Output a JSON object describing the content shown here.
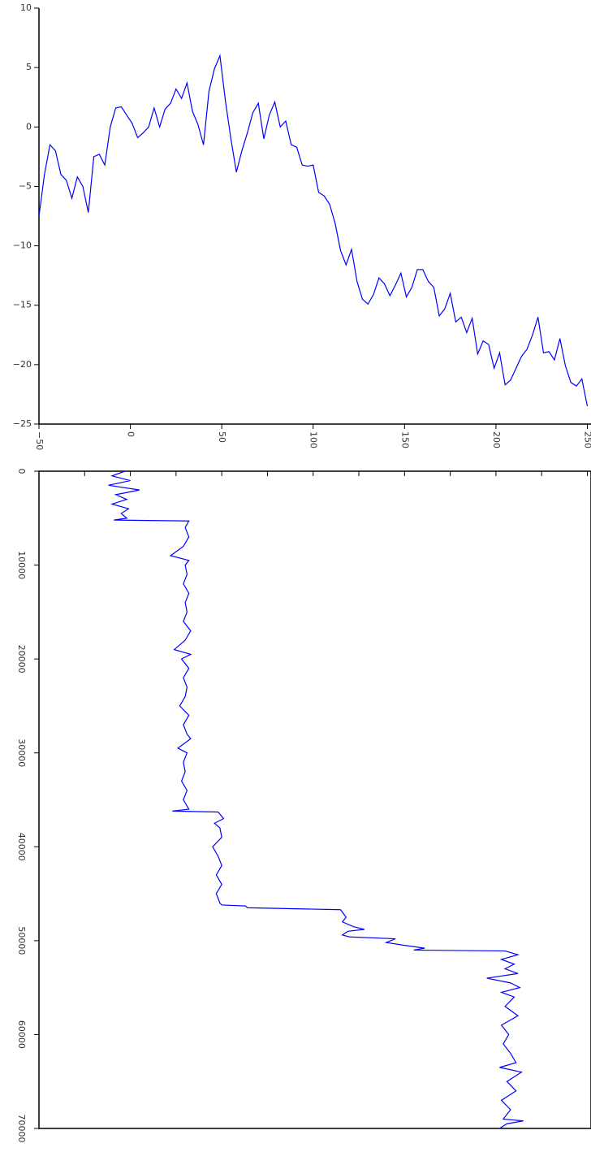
{
  "chart_data": [
    {
      "type": "line",
      "color": "#0000ff",
      "xlim": [
        -50,
        252
      ],
      "ylim": [
        -25,
        10
      ],
      "xticks": [
        {
          "value": -50,
          "label": "−50"
        },
        0,
        50,
        100,
        150,
        200,
        250
      ],
      "yticks": [
        {
          "value": -25,
          "label": "−25"
        },
        {
          "value": -20,
          "label": "−20"
        },
        {
          "value": -15,
          "label": "−15"
        },
        {
          "value": -10,
          "label": "−10"
        },
        {
          "value": -5,
          "label": "−5"
        },
        0,
        5,
        10
      ],
      "x": [
        -50,
        -47,
        -44,
        -41,
        -38,
        -35,
        -32,
        -29,
        -26,
        -23,
        -20,
        -17,
        -14,
        -11,
        -8,
        -5,
        -2,
        1,
        4,
        7,
        10,
        13,
        16,
        19,
        22,
        25,
        28,
        31,
        34,
        37,
        40,
        43,
        46,
        49,
        52,
        55,
        58,
        61,
        64,
        67,
        70,
        73,
        76,
        79,
        82,
        85,
        88,
        91,
        94,
        97,
        100,
        103,
        106,
        109,
        112,
        115,
        118,
        121,
        124,
        127,
        130,
        133,
        136,
        139,
        142,
        145,
        148,
        151,
        154,
        157,
        160,
        163,
        166,
        169,
        172,
        175,
        178,
        181,
        184,
        187,
        190,
        193,
        196,
        199,
        202,
        205,
        208,
        211,
        214,
        217,
        220,
        223,
        226,
        229,
        232,
        235,
        238,
        241,
        244,
        247,
        250
      ],
      "values": [
        -7.5,
        -4,
        -1.5,
        -2,
        -4,
        -4.5,
        -6,
        -4.2,
        -5,
        -7.2,
        -2.5,
        -2.3,
        -3.2,
        0,
        1.6,
        1.7,
        1,
        0.3,
        -0.9,
        -0.5,
        0,
        1.6,
        0,
        1.5,
        2,
        3.2,
        2.4,
        3.7,
        1.3,
        0.2,
        -1.5,
        3,
        4.9,
        6,
        2.2,
        -1,
        -3.8,
        -2,
        -0.5,
        1.2,
        2,
        -1,
        1,
        2.1,
        0,
        0.5,
        -1.5,
        -1.7,
        -3.2,
        -3.3,
        -3.2,
        -5.5,
        -5.8,
        -6.5,
        -8.1,
        -10.4,
        -11.6,
        -10.3,
        -13,
        -14.5,
        -14.9,
        -14.1,
        -12.7,
        -13.2,
        -14.2,
        -13.3,
        -12.3,
        -14.3,
        -13.5,
        -12,
        -12,
        -13,
        -13.5,
        -15.9,
        -15.3,
        -14,
        -16.4,
        -16,
        -17.3,
        -16.1,
        -19.1,
        -18,
        -18.3,
        -20.3,
        -19,
        -21.7,
        -21.3,
        -20.3,
        -19.3,
        -18.7,
        -17.5,
        -16,
        -19,
        -18.9,
        -19.6,
        -17.8,
        -20.1,
        -21.5,
        -21.8,
        -21.2,
        -23.5
      ]
    },
    {
      "type": "vertical-line",
      "color": "#0000ff",
      "xlim": [
        -50,
        252
      ],
      "ylim": [
        0,
        70000
      ],
      "y_inverted": true,
      "xticks": [
        -50,
        -25,
        0,
        25,
        50,
        75,
        100,
        125,
        150,
        175,
        200,
        225,
        250
      ],
      "yticks": [
        0,
        10000,
        20000,
        30000,
        40000,
        50000,
        60000,
        70000
      ],
      "x": [
        -3,
        -10,
        0,
        -12,
        5,
        -8,
        -2,
        -10,
        -1,
        -5,
        -2,
        -9,
        32,
        30,
        32,
        29,
        22,
        32,
        30,
        31,
        29,
        32,
        30,
        31,
        29,
        33,
        30,
        24,
        33,
        28,
        32,
        29,
        31,
        30,
        27,
        32,
        29,
        31,
        33,
        26,
        31,
        29,
        30,
        28,
        31,
        29,
        32,
        23,
        48,
        51,
        46,
        49,
        50,
        45,
        48,
        50,
        47,
        50,
        47,
        49,
        50,
        63,
        64,
        115,
        118,
        116,
        122,
        128,
        119,
        116,
        120,
        145,
        140,
        150,
        161,
        155,
        205,
        212,
        203,
        210,
        205,
        212,
        195,
        208,
        213,
        203,
        210,
        205,
        212,
        203,
        207,
        204,
        208,
        211,
        202,
        214,
        206,
        211,
        203,
        208,
        204,
        215,
        206,
        202
      ],
      "y": [
        0,
        500,
        1000,
        1500,
        2000,
        2500,
        3000,
        3500,
        4000,
        4500,
        5000,
        5200,
        5300,
        6000,
        7000,
        8000,
        9000,
        9500,
        10000,
        11000,
        12000,
        13000,
        14000,
        15000,
        16000,
        17000,
        18000,
        19000,
        19500,
        20000,
        21000,
        22000,
        23000,
        24000,
        25000,
        26000,
        27000,
        28000,
        28500,
        29500,
        30000,
        31000,
        32000,
        33000,
        34000,
        35000,
        36000,
        36200,
        36300,
        37000,
        37500,
        38000,
        39000,
        40000,
        41000,
        42000,
        43000,
        44000,
        45000,
        46000,
        46200,
        46300,
        46500,
        46700,
        47500,
        48000,
        48500,
        48800,
        49000,
        49400,
        49600,
        49800,
        50200,
        50500,
        50800,
        51000,
        51100,
        51500,
        52000,
        52500,
        53000,
        53500,
        54000,
        54500,
        55000,
        55500,
        56000,
        57000,
        58000,
        59000,
        60000,
        61000,
        62000,
        63000,
        63500,
        64000,
        65000,
        66000,
        67000,
        68000,
        69000,
        69200,
        69500,
        70000
      ]
    }
  ]
}
